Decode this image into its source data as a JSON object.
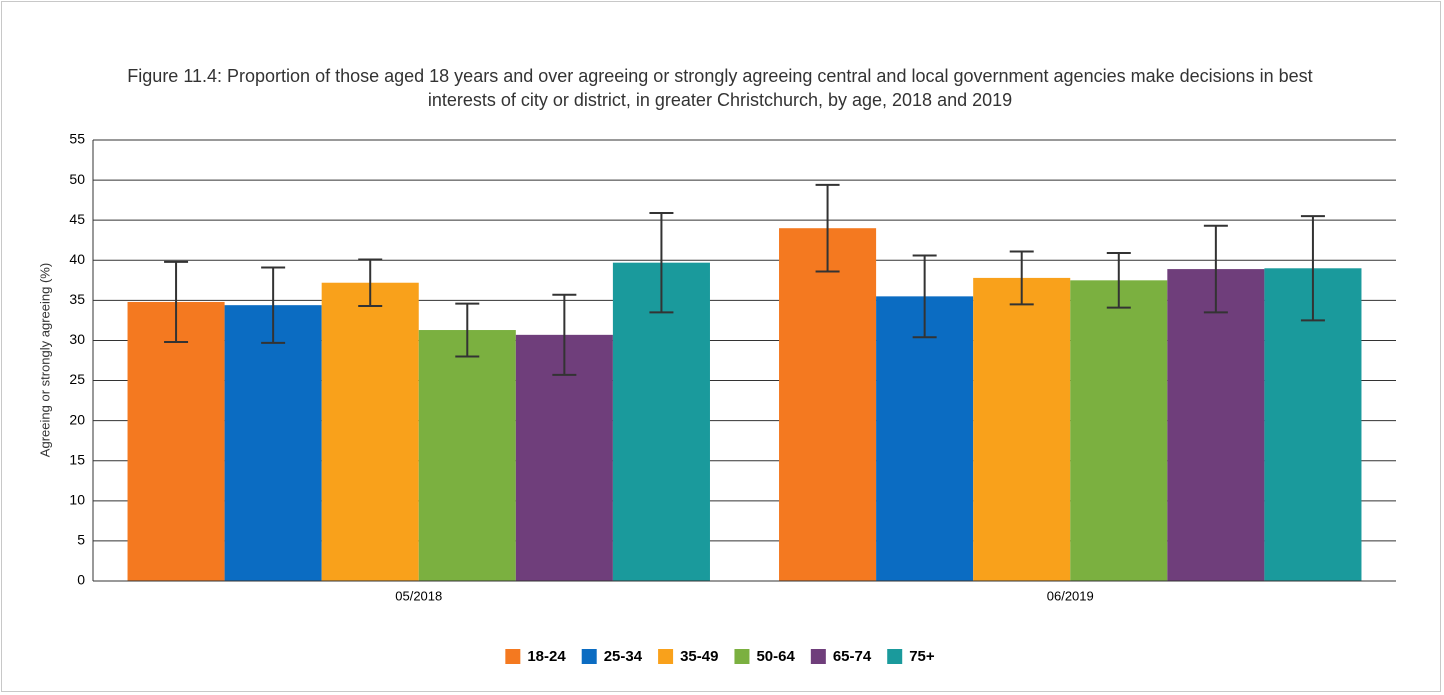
{
  "chart_data": {
    "type": "bar",
    "title": "Figure 11.4: Proportion of those aged 18 years and over agreeing or strongly agreeing central and local government agencies make decisions in best interests of city or district, in greater Christchurch, by age, 2018 and 2019",
    "y_label": "Agreeing or strongly agreeing (%)",
    "categories": [
      "05/2018",
      "06/2019"
    ],
    "series": [
      {
        "name": "18-24",
        "color": "#f47920",
        "values": [
          34.8,
          44.0
        ],
        "errors": [
          5.0,
          5.4
        ]
      },
      {
        "name": "25-34",
        "color": "#0b6cc2",
        "values": [
          34.4,
          35.5
        ],
        "errors": [
          4.7,
          5.1
        ]
      },
      {
        "name": "35-49",
        "color": "#f9a11b",
        "values": [
          37.2,
          37.8
        ],
        "errors": [
          2.9,
          3.3
        ]
      },
      {
        "name": "50-64",
        "color": "#7bb040",
        "values": [
          31.3,
          37.5
        ],
        "errors": [
          3.3,
          3.4
        ]
      },
      {
        "name": "65-74",
        "color": "#6f3e7b",
        "values": [
          30.7,
          38.9
        ],
        "errors": [
          5.0,
          5.4
        ]
      },
      {
        "name": "75+",
        "color": "#1a9a9c",
        "values": [
          39.7,
          39.0
        ],
        "errors": [
          6.2,
          6.5
        ]
      }
    ],
    "ylim": [
      0,
      55
    ],
    "yticks": [
      0,
      5,
      10,
      15,
      20,
      25,
      30,
      35,
      40,
      45,
      50,
      55
    ],
    "grid": true,
    "legend": "bottom"
  }
}
